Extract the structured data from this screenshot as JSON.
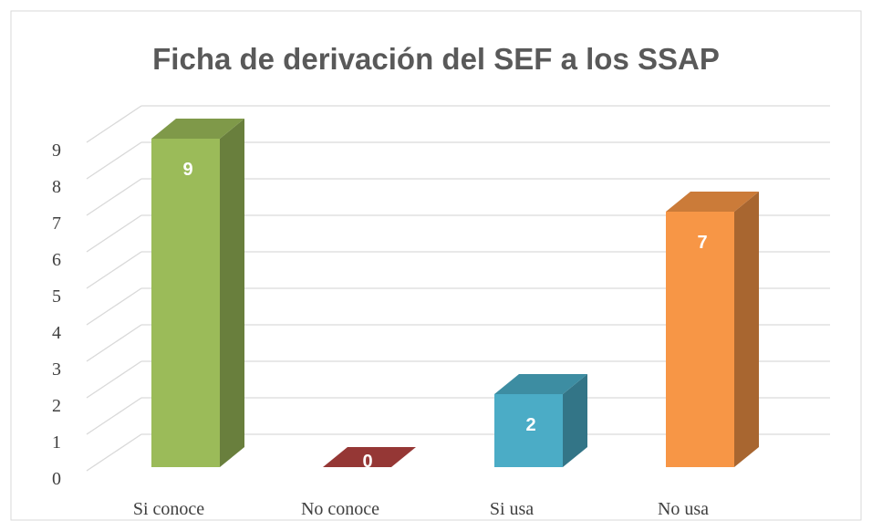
{
  "chart_data": {
    "type": "bar3d",
    "title": "Ficha de derivación del SEF a los SSAP",
    "categories": [
      "Si conoce",
      "No conoce",
      "Si usa",
      "No usa"
    ],
    "values": [
      9,
      0,
      2,
      7
    ],
    "colors": [
      "#9bbb59",
      "#953735",
      "#4bacc6",
      "#f79646"
    ],
    "ylim": [
      0,
      9
    ],
    "yticks": [
      0,
      1,
      2,
      3,
      4,
      5,
      6,
      7,
      8,
      9
    ],
    "grid": true
  }
}
